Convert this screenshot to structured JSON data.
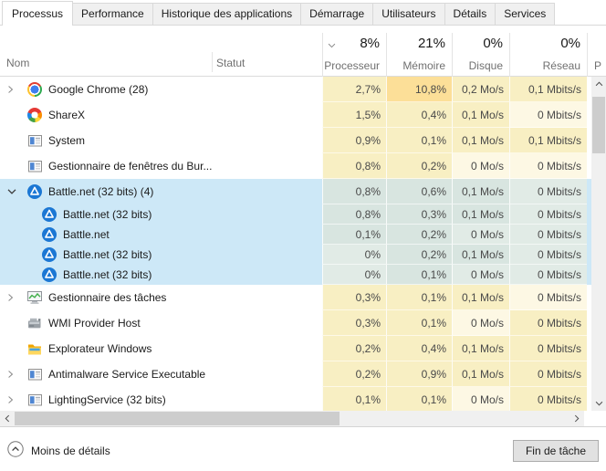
{
  "tabs": [
    {
      "label": "Processus",
      "active": true
    },
    {
      "label": "Performance",
      "active": false
    },
    {
      "label": "Historique des applications",
      "active": false
    },
    {
      "label": "Démarrage",
      "active": false
    },
    {
      "label": "Utilisateurs",
      "active": false
    },
    {
      "label": "Détails",
      "active": false
    },
    {
      "label": "Services",
      "active": false
    }
  ],
  "header": {
    "name_label": "Nom",
    "status_label": "Statut",
    "partial_column_label": "P",
    "columns": [
      {
        "id": "processeur",
        "value": "8%",
        "label": "Processeur",
        "sorted": true
      },
      {
        "id": "memoire",
        "value": "21%",
        "label": "Mémoire",
        "sorted": false
      },
      {
        "id": "disque",
        "value": "0%",
        "label": "Disque",
        "sorted": false
      },
      {
        "id": "reseau",
        "value": "0%",
        "label": "Réseau",
        "sorted": false
      }
    ]
  },
  "processes": [
    {
      "name": "Google Chrome (28)",
      "icon": "chrome-icon",
      "expander": "collapsed",
      "child": false,
      "selected": false,
      "cells": [
        {
          "value": "2,7%",
          "shade": "y"
        },
        {
          "value": "10,8%",
          "shade": "o"
        },
        {
          "value": "0,2 Mo/s",
          "shade": "y"
        },
        {
          "value": "0,1 Mbits/s",
          "shade": "y"
        }
      ]
    },
    {
      "name": "ShareX",
      "icon": "sharex-icon",
      "expander": null,
      "child": false,
      "selected": false,
      "cells": [
        {
          "value": "1,5%",
          "shade": "y"
        },
        {
          "value": "0,4%",
          "shade": "y"
        },
        {
          "value": "0,1 Mo/s",
          "shade": "y"
        },
        {
          "value": "0 Mbits/s",
          "shade": "p"
        }
      ]
    },
    {
      "name": "System",
      "icon": "window-icon",
      "expander": null,
      "child": false,
      "selected": false,
      "cells": [
        {
          "value": "0,9%",
          "shade": "y"
        },
        {
          "value": "0,1%",
          "shade": "y"
        },
        {
          "value": "0,1 Mo/s",
          "shade": "y"
        },
        {
          "value": "0,1 Mbits/s",
          "shade": "y"
        }
      ]
    },
    {
      "name": "Gestionnaire de fenêtres du Bur...",
      "icon": "window-icon",
      "expander": null,
      "child": false,
      "selected": false,
      "cells": [
        {
          "value": "0,8%",
          "shade": "y"
        },
        {
          "value": "0,2%",
          "shade": "y"
        },
        {
          "value": "0 Mo/s",
          "shade": "p"
        },
        {
          "value": "0 Mbits/s",
          "shade": "p"
        }
      ]
    },
    {
      "name": "Battle.net (32 bits) (4)",
      "icon": "battlenet-icon",
      "expander": "expanded",
      "child": false,
      "selected": true,
      "cells": [
        {
          "value": "0,8%",
          "shade": "b"
        },
        {
          "value": "0,6%",
          "shade": "b"
        },
        {
          "value": "0,1 Mo/s",
          "shade": "b"
        },
        {
          "value": "0 Mbits/s",
          "shade": "bl"
        }
      ]
    },
    {
      "name": "Battle.net (32 bits)",
      "icon": "battlenet-icon",
      "expander": null,
      "child": true,
      "selected": true,
      "cells": [
        {
          "value": "0,8%",
          "shade": "b"
        },
        {
          "value": "0,3%",
          "shade": "b"
        },
        {
          "value": "0,1 Mo/s",
          "shade": "b"
        },
        {
          "value": "0 Mbits/s",
          "shade": "bl"
        }
      ]
    },
    {
      "name": "Battle.net",
      "icon": "battlenet-icon",
      "expander": null,
      "child": true,
      "selected": true,
      "cells": [
        {
          "value": "0,1%",
          "shade": "b"
        },
        {
          "value": "0,2%",
          "shade": "b"
        },
        {
          "value": "0 Mo/s",
          "shade": "bl"
        },
        {
          "value": "0 Mbits/s",
          "shade": "bl"
        }
      ]
    },
    {
      "name": "Battle.net (32 bits)",
      "icon": "battlenet-icon",
      "expander": null,
      "child": true,
      "selected": true,
      "cells": [
        {
          "value": "0%",
          "shade": "bl"
        },
        {
          "value": "0,2%",
          "shade": "b"
        },
        {
          "value": "0,1 Mo/s",
          "shade": "b"
        },
        {
          "value": "0 Mbits/s",
          "shade": "bl"
        }
      ]
    },
    {
      "name": "Battle.net (32 bits)",
      "icon": "battlenet-icon",
      "expander": null,
      "child": true,
      "selected": true,
      "cells": [
        {
          "value": "0%",
          "shade": "bl"
        },
        {
          "value": "0,1%",
          "shade": "b"
        },
        {
          "value": "0 Mo/s",
          "shade": "bl"
        },
        {
          "value": "0 Mbits/s",
          "shade": "bl"
        }
      ]
    },
    {
      "name": "Gestionnaire des tâches",
      "icon": "taskmgr-icon",
      "expander": "collapsed",
      "child": false,
      "selected": false,
      "cells": [
        {
          "value": "0,3%",
          "shade": "y"
        },
        {
          "value": "0,1%",
          "shade": "y"
        },
        {
          "value": "0,1 Mo/s",
          "shade": "y"
        },
        {
          "value": "0 Mbits/s",
          "shade": "p"
        }
      ]
    },
    {
      "name": "WMI Provider Host",
      "icon": "wmi-icon",
      "expander": null,
      "child": false,
      "selected": false,
      "cells": [
        {
          "value": "0,3%",
          "shade": "y"
        },
        {
          "value": "0,1%",
          "shade": "y"
        },
        {
          "value": "0 Mo/s",
          "shade": "p"
        },
        {
          "value": "0 Mbits/s",
          "shade": "y"
        }
      ]
    },
    {
      "name": "Explorateur Windows",
      "icon": "folder-icon",
      "expander": null,
      "child": false,
      "selected": false,
      "cells": [
        {
          "value": "0,2%",
          "shade": "y"
        },
        {
          "value": "0,4%",
          "shade": "y"
        },
        {
          "value": "0,1 Mo/s",
          "shade": "y"
        },
        {
          "value": "0 Mbits/s",
          "shade": "y"
        }
      ]
    },
    {
      "name": "Antimalware Service Executable",
      "icon": "window-icon",
      "expander": "collapsed",
      "child": false,
      "selected": false,
      "cells": [
        {
          "value": "0,2%",
          "shade": "y"
        },
        {
          "value": "0,9%",
          "shade": "y"
        },
        {
          "value": "0,1 Mo/s",
          "shade": "y"
        },
        {
          "value": "0 Mbits/s",
          "shade": "y"
        }
      ]
    },
    {
      "name": "LightingService (32 bits)",
      "icon": "window-icon",
      "expander": "collapsed",
      "child": false,
      "selected": false,
      "cells": [
        {
          "value": "0,1%",
          "shade": "y"
        },
        {
          "value": "0,1%",
          "shade": "y"
        },
        {
          "value": "0 Mo/s",
          "shade": "p"
        },
        {
          "value": "0 Mbits/s",
          "shade": "y"
        }
      ]
    }
  ],
  "footer": {
    "toggle_label": "Moins de détails",
    "end_task_label": "Fin de tâche"
  },
  "colors": {
    "selection": "#cde8f7",
    "heat_low": "#f8efc3",
    "heat_zero": "#fdf8e4",
    "heat_high": "#fcdf98",
    "selected_cell": "#d8e5e0",
    "selected_cell_light": "#e1ebe6",
    "tab_border": "#d9d9d9"
  }
}
